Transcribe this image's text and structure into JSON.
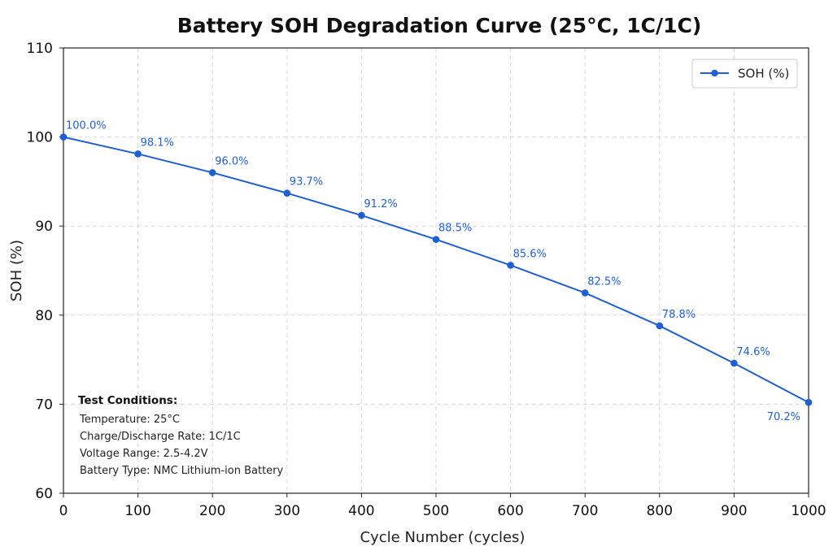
{
  "colors": {
    "series": "#1f5fd6",
    "grid": "#d8d8d8",
    "axis": "#222222"
  },
  "chart_data": {
    "type": "line",
    "title": "Battery SOH Degradation Curve (25°C, 1C/1C)",
    "xlabel": "Cycle Number (cycles)",
    "ylabel": "SOH (%)",
    "xlim": [
      0,
      1000
    ],
    "ylim": [
      60,
      110
    ],
    "x_ticks": [
      "0",
      "100",
      "200",
      "300",
      "400",
      "500",
      "600",
      "700",
      "800",
      "900",
      "1000"
    ],
    "y_ticks": [
      "60",
      "70",
      "80",
      "90",
      "100",
      "110"
    ],
    "grid": true,
    "legend_position": "top-right",
    "series": [
      {
        "name": "SOH (%)",
        "x": [
          0,
          100,
          200,
          300,
          400,
          500,
          600,
          700,
          800,
          900,
          1000
        ],
        "values": [
          100.0,
          98.1,
          96.0,
          93.7,
          91.2,
          88.5,
          85.6,
          82.5,
          78.8,
          74.6,
          70.2
        ],
        "labels": [
          "100.0%",
          "98.1%",
          "96.0%",
          "93.7%",
          "91.2%",
          "88.5%",
          "85.6%",
          "82.5%",
          "78.8%",
          "74.6%",
          "70.2%"
        ]
      }
    ],
    "annotation": {
      "title": "Test Conditions:",
      "lines": [
        "Temperature: 25°C",
        "Charge/Discharge Rate: 1C/1C",
        "Voltage Range: 2.5-4.2V",
        "Battery Type: NMC Lithium-ion Battery"
      ]
    }
  }
}
